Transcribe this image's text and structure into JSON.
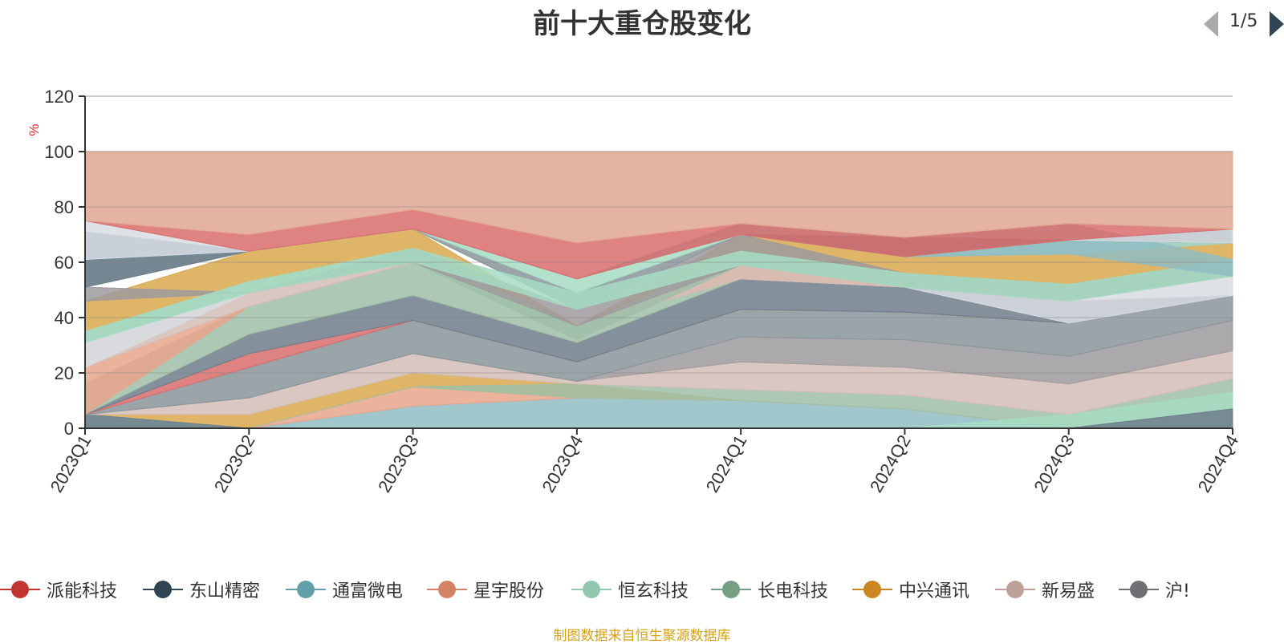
{
  "chart_data": {
    "type": "area",
    "title": "前十大重仓股变化",
    "ylabel": "%",
    "ylim": [
      0,
      120
    ],
    "yticks": [
      0,
      20,
      40,
      60,
      80,
      100,
      120
    ],
    "grid": true,
    "legend_position": "bottom",
    "categories": [
      "2023Q1",
      "2023Q2",
      "2023Q3",
      "2023Q4",
      "2024Q1",
      "2024Q2",
      "2024Q3",
      "2024Q4"
    ],
    "bands": [
      {
        "color": "#91bcc3",
        "lower": [
          0,
          0,
          0,
          0,
          0,
          0,
          0,
          0
        ],
        "upper": [
          0,
          0,
          8,
          11,
          10,
          7,
          0,
          0
        ]
      },
      {
        "color": "#e7a48b",
        "lower": [
          0,
          0,
          8,
          11,
          10,
          7,
          0,
          0
        ],
        "upper": [
          0,
          0,
          15,
          11,
          10,
          7,
          0,
          0
        ]
      },
      {
        "color": "#d9a84e",
        "lower": [
          5,
          0,
          15,
          11,
          10,
          7,
          0,
          0
        ],
        "upper": [
          5,
          5,
          20,
          16,
          10,
          7,
          0,
          0
        ]
      },
      {
        "color": "#d86c6c",
        "lower": [
          0,
          0,
          0,
          0,
          0,
          0,
          0,
          0
        ],
        "upper": [
          5,
          0,
          0,
          0,
          0,
          0,
          0,
          0
        ]
      },
      {
        "color": "#9fbfa8",
        "lower": [
          0,
          0,
          15,
          11,
          10,
          7,
          0,
          0
        ],
        "upper": [
          5,
          0,
          15,
          16,
          14,
          12,
          5,
          18
        ]
      },
      {
        "color": "#a6dcc3",
        "lower": [
          0,
          0,
          0,
          0,
          0,
          0,
          0,
          0
        ],
        "upper": [
          5,
          0,
          0,
          0,
          0,
          0,
          5,
          13
        ]
      },
      {
        "color": "#6e7d8a",
        "lower": [
          0,
          0,
          0,
          0,
          0,
          0,
          0,
          0
        ],
        "upper": [
          5,
          0,
          0,
          0,
          0,
          0,
          0,
          7
        ]
      },
      {
        "color": "#d5bdb6",
        "lower": [
          5,
          5,
          20,
          16,
          14,
          12,
          5,
          18
        ],
        "upper": [
          5,
          11,
          27,
          17,
          24,
          22,
          16,
          28
        ]
      },
      {
        "color": "#9e9a9d",
        "lower": [
          5,
          11,
          27,
          17,
          24,
          22,
          16,
          28
        ],
        "upper": [
          5,
          11,
          27,
          17,
          33,
          32,
          26,
          39
        ]
      },
      {
        "color": "#88949a",
        "lower": [
          5,
          11,
          27,
          17,
          33,
          32,
          26,
          39
        ],
        "upper": [
          5,
          22,
          39,
          24,
          43,
          42,
          38,
          48
        ]
      },
      {
        "color": "#d86c6c",
        "lower": [
          5,
          22,
          39,
          24,
          43,
          42,
          38,
          48
        ],
        "upper": [
          5,
          27,
          39,
          24,
          43,
          42,
          38,
          48
        ]
      },
      {
        "color": "#6e7d8a",
        "lower": [
          5,
          27,
          39,
          24,
          43,
          42,
          38,
          48
        ],
        "upper": [
          5,
          34,
          48,
          31,
          54,
          51,
          46,
          48
        ]
      },
      {
        "color": "#9fbfa8",
        "lower": [
          5,
          34,
          48,
          31,
          54,
          51,
          46,
          48
        ],
        "upper": [
          16,
          44,
          60,
          37,
          54,
          51,
          46,
          48
        ]
      },
      {
        "color": "#e7a48b",
        "lower": [
          5,
          44,
          60,
          37,
          54,
          51,
          46,
          48
        ],
        "upper": [
          22,
          44,
          60,
          37,
          59,
          51,
          46,
          48
        ]
      },
      {
        "color": "#d5bdb6",
        "lower": [
          22,
          44,
          60,
          37,
          54,
          51,
          46,
          48
        ],
        "upper": [
          31,
          49,
          60,
          37,
          59,
          51,
          46,
          48
        ]
      },
      {
        "color": "#d8dde3",
        "lower": [
          22,
          49,
          60,
          37,
          59,
          51,
          38,
          48
        ],
        "upper": [
          31,
          49,
          60,
          37,
          59,
          51,
          46,
          55
        ]
      },
      {
        "color": "#9fbfa8",
        "lower": [
          31,
          49,
          60,
          32,
          59,
          51,
          46,
          55
        ],
        "upper": [
          35,
          53,
          65,
          37,
          64,
          56,
          52,
          61
        ]
      },
      {
        "color": "#d9a84e",
        "lower": [
          35,
          53,
          65,
          37,
          64,
          56,
          52,
          61
        ],
        "upper": [
          46,
          64,
          72,
          37,
          70,
          62,
          63,
          67
        ]
      },
      {
        "color": "#9e9a9d",
        "lower": [
          46,
          49,
          60,
          37,
          59,
          51,
          46,
          55
        ],
        "upper": [
          51,
          49,
          65,
          43,
          70,
          56,
          52,
          61
        ]
      },
      {
        "color": "#d5bdb6",
        "lower": [
          51,
          64,
          72,
          43,
          70,
          62,
          63,
          67
        ],
        "upper": [
          61,
          64,
          72,
          43,
          70,
          62,
          63,
          67
        ]
      },
      {
        "color": "#88949a",
        "lower": [
          51,
          64,
          72,
          43,
          70,
          62,
          63,
          67
        ],
        "upper": [
          71,
          64,
          72,
          49,
          70,
          62,
          68,
          72
        ]
      },
      {
        "color": "#a6dcc3",
        "lower": [
          31,
          49,
          60,
          43,
          59,
          51,
          46,
          55
        ],
        "upper": [
          35,
          53,
          65,
          49,
          64,
          56,
          52,
          61
        ]
      },
      {
        "color": "#a6dcc3",
        "lower": [
          51,
          64,
          72,
          49,
          70,
          62,
          63,
          67
        ],
        "upper": [
          71,
          64,
          72,
          54,
          74,
          62,
          68,
          72
        ]
      },
      {
        "color": "#91bcc3",
        "lower": [
          51,
          64,
          72,
          54,
          70,
          62,
          63,
          55
        ],
        "upper": [
          71,
          64,
          72,
          54,
          74,
          69,
          74,
          61
        ]
      },
      {
        "color": "#6e7d8a",
        "lower": [
          51,
          64,
          72,
          54,
          70,
          62,
          68,
          67
        ],
        "upper": [
          71,
          64,
          72,
          54,
          70,
          69,
          68,
          72
        ]
      },
      {
        "color": "#d8dde3",
        "lower": [
          61,
          64,
          72,
          54,
          70,
          62,
          68,
          67
        ],
        "upper": [
          75,
          64,
          72,
          54,
          70,
          62,
          68,
          72
        ]
      },
      {
        "color": "#d86c6c",
        "lower": [
          75,
          64,
          72,
          54,
          70,
          62,
          68,
          72
        ],
        "upper": [
          75,
          70,
          79,
          67,
          74,
          69,
          74,
          72
        ]
      },
      {
        "color": "#e0a690",
        "lower": [
          75,
          70,
          79,
          67,
          74,
          69,
          74,
          72
        ],
        "upper": [
          100,
          100,
          100,
          100,
          100,
          100,
          100,
          100
        ]
      }
    ]
  },
  "legend": {
    "items": [
      {
        "name": "派能科技",
        "color": "#c23531"
      },
      {
        "name": "东山精密",
        "color": "#2f4554"
      },
      {
        "name": "通富微电",
        "color": "#61a0a8"
      },
      {
        "name": "星宇股份",
        "color": "#d48265"
      },
      {
        "name": "恒玄科技",
        "color": "#91c7ae"
      },
      {
        "name": "长电科技",
        "color": "#749f83"
      },
      {
        "name": "中兴通讯",
        "color": "#ca8622"
      },
      {
        "name": "新易盛",
        "color": "#bda29a"
      },
      {
        "name": "沪!",
        "color": "#6e7074"
      }
    ],
    "page": "1/5"
  },
  "source_note": "制图数据来自恒生聚源数据库"
}
